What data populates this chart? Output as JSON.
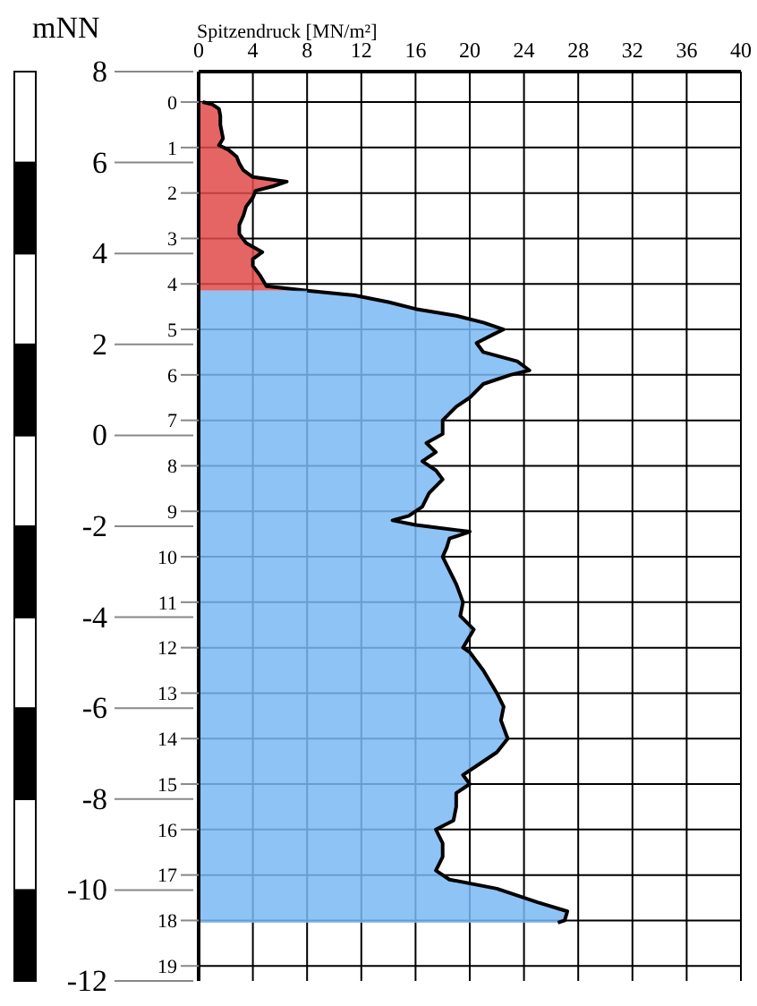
{
  "chart_data": {
    "type": "area",
    "orientation": "horizontal",
    "xlabel": "Spitzendruck [MN/m²]",
    "y2label": "mNN",
    "xlim": [
      0,
      40
    ],
    "xticks": [
      0,
      4,
      8,
      12,
      16,
      20,
      24,
      28,
      32,
      36,
      40
    ],
    "ylim": [
      19.33,
      -0.67
    ],
    "yticks": [
      0,
      1,
      2,
      3,
      4,
      5,
      6,
      7,
      8,
      9,
      10,
      11,
      12,
      13,
      14,
      15,
      16,
      17,
      18,
      19
    ],
    "y2lim": [
      -12,
      8
    ],
    "y2ticks": [
      -12,
      -10,
      -8,
      -6,
      -4,
      -2,
      0,
      2,
      4,
      6,
      8
    ],
    "grid": true,
    "series": [
      {
        "color": "#e04a4a",
        "x": [
          0,
          0.05,
          0.15,
          0.3,
          0.5,
          0.8,
          0.95,
          1.05,
          1.2,
          1.35,
          1.5,
          1.65,
          1.75,
          1.85,
          1.95,
          2.1,
          2.3,
          2.5,
          2.7,
          2.9,
          3.1,
          3.3,
          3.45,
          3.6,
          3.8,
          4.05,
          4.15
        ],
        "values": [
          0.3,
          1.0,
          1.5,
          1.6,
          1.6,
          1.8,
          1.5,
          2.2,
          2.8,
          3.0,
          3.3,
          4.0,
          6.5,
          5.5,
          4.2,
          4.0,
          3.5,
          3.3,
          3.0,
          3.0,
          3.5,
          4.7,
          4.0,
          4.0,
          4.5,
          5.0,
          8.0
        ]
      },
      {
        "color": "#7ab8f5",
        "x": [
          4.15,
          4.25,
          4.4,
          4.55,
          4.7,
          4.85,
          5.0,
          5.1,
          5.3,
          5.5,
          5.7,
          5.9,
          6.0,
          6.2,
          6.5,
          6.7,
          7.0,
          7.3,
          7.5,
          7.7,
          7.9,
          8.1,
          8.3,
          8.6,
          8.9,
          9.1,
          9.2,
          9.3,
          9.45,
          9.6,
          9.8,
          10.0,
          10.3,
          10.6,
          11.0,
          11.3,
          11.6,
          12.0,
          12.1,
          12.5,
          13.0,
          13.3,
          13.6,
          14.0,
          14.3,
          14.6,
          14.8,
          15.0,
          15.2,
          15.5,
          15.8,
          16.0,
          16.3,
          16.6,
          16.9,
          17.1,
          17.3,
          17.6,
          17.8,
          18.0,
          18.05
        ],
        "values": [
          8.0,
          11.5,
          14,
          16,
          19,
          21,
          22.5,
          21.8,
          20.5,
          21,
          23.5,
          24.4,
          23,
          21,
          20,
          19,
          18,
          18,
          16.8,
          17.5,
          16.5,
          17.5,
          18,
          17,
          16.5,
          15.5,
          14.3,
          16,
          20,
          18.5,
          18.3,
          18,
          18.5,
          19,
          19.5,
          19.3,
          20.3,
          19.5,
          20,
          21,
          22,
          22.5,
          22.3,
          22.8,
          22,
          20.5,
          19.5,
          20,
          19,
          19,
          18.8,
          17.5,
          18,
          18,
          17.5,
          18.5,
          22,
          25,
          27.2,
          27,
          26.5
        ]
      }
    ]
  }
}
